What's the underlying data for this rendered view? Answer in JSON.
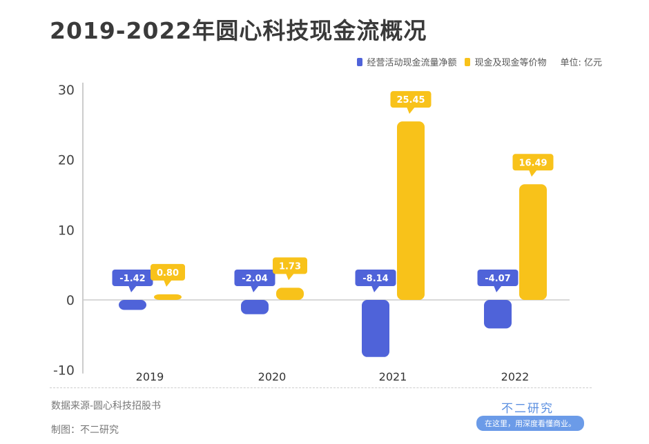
{
  "title": "2019-2022年圆心科技现金流概况",
  "legend": {
    "unit": "单位: 亿元"
  },
  "footer": {
    "source": "数据来源-圆心科技招股书",
    "maker": "制图：不二研究",
    "brand": "不二研究",
    "slogan": "在这里，用深度看懂商业。"
  },
  "colors": {
    "blue": "#4f63d9",
    "yellow": "#f8c21a"
  },
  "chart_data": {
    "type": "bar",
    "title": "2019-2022年圆心科技现金流概况",
    "categories": [
      "2019",
      "2020",
      "2021",
      "2022"
    ],
    "series": [
      {
        "name": "经营活动现金流量净额",
        "values": [
          -1.42,
          -2.04,
          -8.14,
          -4.07
        ],
        "labels": [
          "-1.42",
          "-2.04",
          "-8.14",
          "-4.07"
        ]
      },
      {
        "name": "现金及现金等价物",
        "values": [
          0.8,
          1.73,
          25.45,
          16.49
        ],
        "labels": [
          "0.80",
          "1.73",
          "25.45",
          "16.49"
        ]
      }
    ],
    "ylim": [
      -10,
      30
    ],
    "yticks": [
      "-10",
      "0",
      "10",
      "20",
      "30"
    ],
    "xlabel": "",
    "ylabel": "",
    "legend": "top-right"
  }
}
